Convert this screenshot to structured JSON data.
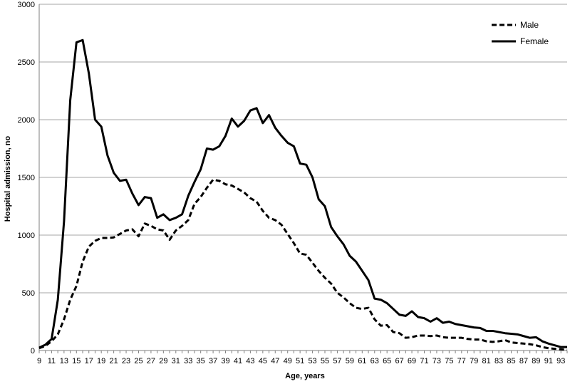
{
  "chart_data": {
    "type": "line",
    "xlabel": "Age, years",
    "ylabel": "Hospital admission, no",
    "ylim": [
      0,
      3000
    ],
    "yticks": [
      0,
      500,
      1000,
      1500,
      2000,
      2500,
      3000
    ],
    "xlim": [
      9,
      94
    ],
    "xticks": [
      9,
      11,
      13,
      15,
      17,
      19,
      21,
      23,
      25,
      27,
      29,
      31,
      33,
      35,
      37,
      39,
      41,
      43,
      45,
      47,
      49,
      51,
      53,
      55,
      57,
      59,
      61,
      63,
      65,
      67,
      69,
      71,
      73,
      75,
      77,
      79,
      81,
      83,
      85,
      87,
      89,
      91,
      93
    ],
    "grid": "horizontal",
    "legend_position": "top-right",
    "x": [
      9,
      10,
      11,
      12,
      13,
      14,
      15,
      16,
      17,
      18,
      19,
      20,
      21,
      22,
      23,
      24,
      25,
      26,
      27,
      28,
      29,
      30,
      31,
      32,
      33,
      34,
      35,
      36,
      37,
      38,
      39,
      40,
      41,
      42,
      43,
      44,
      45,
      46,
      47,
      48,
      49,
      50,
      51,
      52,
      53,
      54,
      55,
      56,
      57,
      58,
      59,
      60,
      61,
      62,
      63,
      64,
      65,
      66,
      67,
      68,
      69,
      70,
      71,
      72,
      73,
      74,
      75,
      76,
      77,
      78,
      79,
      80,
      81,
      82,
      83,
      84,
      85,
      86,
      87,
      88,
      89,
      90,
      91,
      92,
      93,
      94
    ],
    "series": [
      {
        "name": "Male",
        "style": "dashed",
        "values": [
          20,
          40,
          80,
          140,
          270,
          440,
          560,
          770,
          900,
          950,
          975,
          975,
          980,
          1010,
          1040,
          1050,
          990,
          1100,
          1080,
          1050,
          1040,
          960,
          1040,
          1080,
          1130,
          1270,
          1330,
          1410,
          1480,
          1470,
          1440,
          1430,
          1400,
          1370,
          1320,
          1290,
          1210,
          1150,
          1130,
          1090,
          1010,
          930,
          840,
          830,
          760,
          690,
          630,
          580,
          500,
          460,
          410,
          370,
          360,
          370,
          270,
          215,
          220,
          160,
          150,
          110,
          115,
          130,
          130,
          125,
          130,
          115,
          110,
          110,
          110,
          100,
          95,
          95,
          80,
          75,
          80,
          90,
          70,
          65,
          60,
          55,
          45,
          30,
          20,
          15,
          10,
          5
        ]
      },
      {
        "name": "Female",
        "style": "solid",
        "values": [
          25,
          50,
          100,
          440,
          1120,
          2170,
          2670,
          2690,
          2400,
          2000,
          1940,
          1690,
          1540,
          1470,
          1480,
          1360,
          1260,
          1330,
          1320,
          1150,
          1180,
          1130,
          1150,
          1180,
          1340,
          1460,
          1570,
          1750,
          1740,
          1770,
          1860,
          2010,
          1940,
          1990,
          2080,
          2100,
          1970,
          2040,
          1930,
          1860,
          1800,
          1770,
          1620,
          1610,
          1500,
          1310,
          1250,
          1070,
          990,
          920,
          820,
          770,
          690,
          610,
          450,
          440,
          410,
          360,
          310,
          300,
          340,
          290,
          280,
          250,
          280,
          240,
          250,
          230,
          220,
          210,
          200,
          195,
          170,
          170,
          160,
          150,
          145,
          140,
          125,
          110,
          115,
          80,
          60,
          45,
          30,
          30
        ]
      }
    ]
  }
}
